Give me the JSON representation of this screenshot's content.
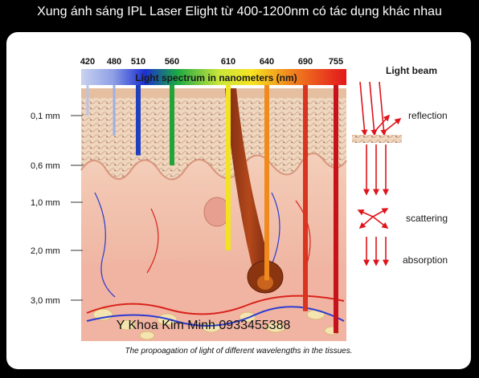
{
  "title": "Xung ánh sáng IPL Laser Elight từ 400-1200nm có tác dụng khác nhau",
  "wavelengths": [
    {
      "nm": "420",
      "color": "#b8c4e8",
      "depth": "0.1"
    },
    {
      "nm": "480",
      "color": "#9db0e6",
      "depth": "0.3"
    },
    {
      "nm": "510",
      "color": "#1f3fbf",
      "depth": "0.5"
    },
    {
      "nm": "560",
      "color": "#22a338",
      "depth": "0.6"
    },
    {
      "nm": "610",
      "color": "#f3e221",
      "depth": "2.0"
    },
    {
      "nm": "640",
      "color": "#f08a1c",
      "depth": "2.6"
    },
    {
      "nm": "690",
      "color": "#d9341f",
      "depth": "3.2"
    },
    {
      "nm": "755",
      "color": "#c6121a",
      "depth": "3.6"
    }
  ],
  "spectrum_label": "Light spectrum in nanometers (nm)",
  "depth_labels": [
    "0,1 mm",
    "0,6 mm",
    "1,0 mm",
    "2,0 mm",
    "3,0 mm"
  ],
  "light_behaviour": {
    "beam": "Light beam",
    "reflection": "reflection",
    "scattering": "scattering",
    "absorption": "absorption"
  },
  "watermark": "Y Khoa Kim Minh 0933455388",
  "caption": "The propoagation of light of different wavelengths in the tissues."
}
